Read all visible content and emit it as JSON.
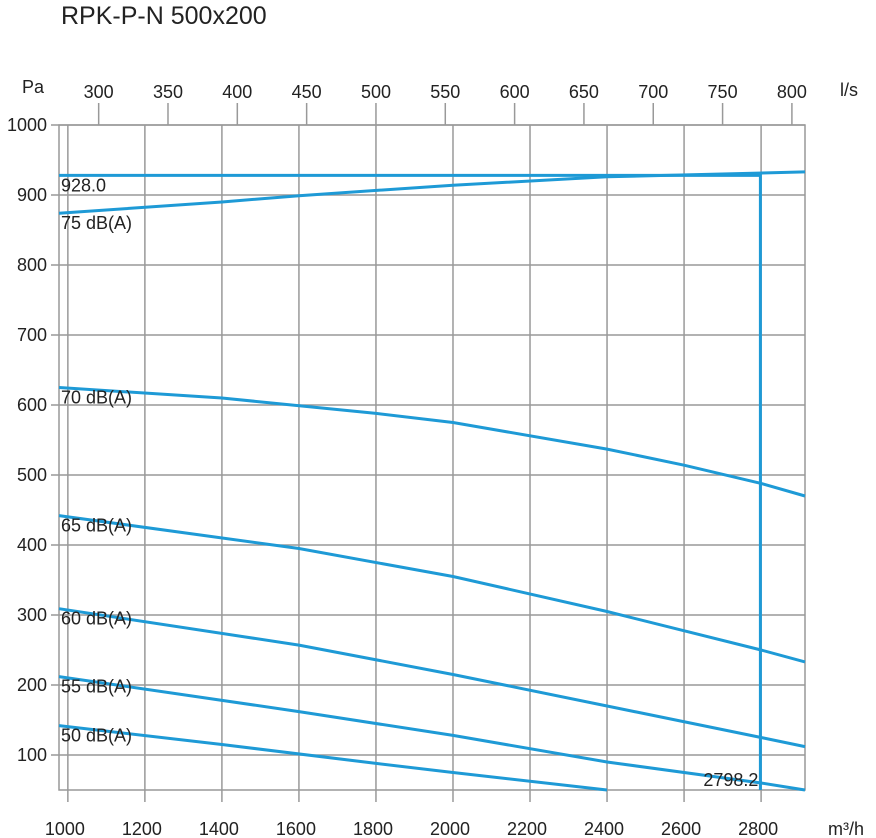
{
  "title": "RPK-P-N 500x200",
  "chart_data": {
    "type": "line",
    "title": "RPK-P-N 500x200",
    "xlabel": "m³/h",
    "ylabel": "Pa",
    "x2label": "l/s",
    "xlim": [
      977,
      2914
    ],
    "ylim": [
      50,
      1000
    ],
    "xticks": [
      1000,
      1200,
      1400,
      1600,
      1800,
      2000,
      2200,
      2400,
      2600,
      2800
    ],
    "yticks": [
      100,
      200,
      300,
      400,
      500,
      600,
      700,
      800,
      900,
      1000
    ],
    "x2ticks": [
      300,
      350,
      400,
      450,
      500,
      550,
      600,
      650,
      700,
      750,
      800
    ],
    "grid": true,
    "line_color": "#1e9ad6",
    "series": [
      {
        "name": "75 dB(A)",
        "x": [
          977,
          1400,
          1600,
          2000,
          2400,
          2914
        ],
        "y": [
          874,
          890,
          899,
          914,
          926,
          933
        ]
      },
      {
        "name": "70 dB(A)",
        "x": [
          977,
          1400,
          1800,
          2000,
          2400,
          2600,
          2800,
          2914
        ],
        "y": [
          625,
          610,
          588,
          575,
          537,
          514,
          488,
          470
        ]
      },
      {
        "name": "65 dB(A)",
        "x": [
          977,
          1600,
          2000,
          2400,
          2800,
          2914
        ],
        "y": [
          442,
          395,
          355,
          305,
          250,
          233
        ]
      },
      {
        "name": "60 dB(A)",
        "x": [
          977,
          1600,
          2000,
          2400,
          2800,
          2914
        ],
        "y": [
          309,
          257,
          215,
          170,
          125,
          112
        ]
      },
      {
        "name": "55 dB(A)",
        "x": [
          977,
          1600,
          2000,
          2400,
          2800,
          2914
        ],
        "y": [
          212,
          162,
          128,
          90,
          60,
          50
        ]
      },
      {
        "name": "50 dB(A)",
        "x": [
          977,
          1400,
          1800,
          2000,
          2400
        ],
        "y": [
          142,
          115,
          88,
          75,
          50
        ]
      }
    ],
    "operating_point": {
      "x": 2798.2,
      "y": 928.0,
      "x_label": "2798.2",
      "y_label": "928.0"
    }
  }
}
